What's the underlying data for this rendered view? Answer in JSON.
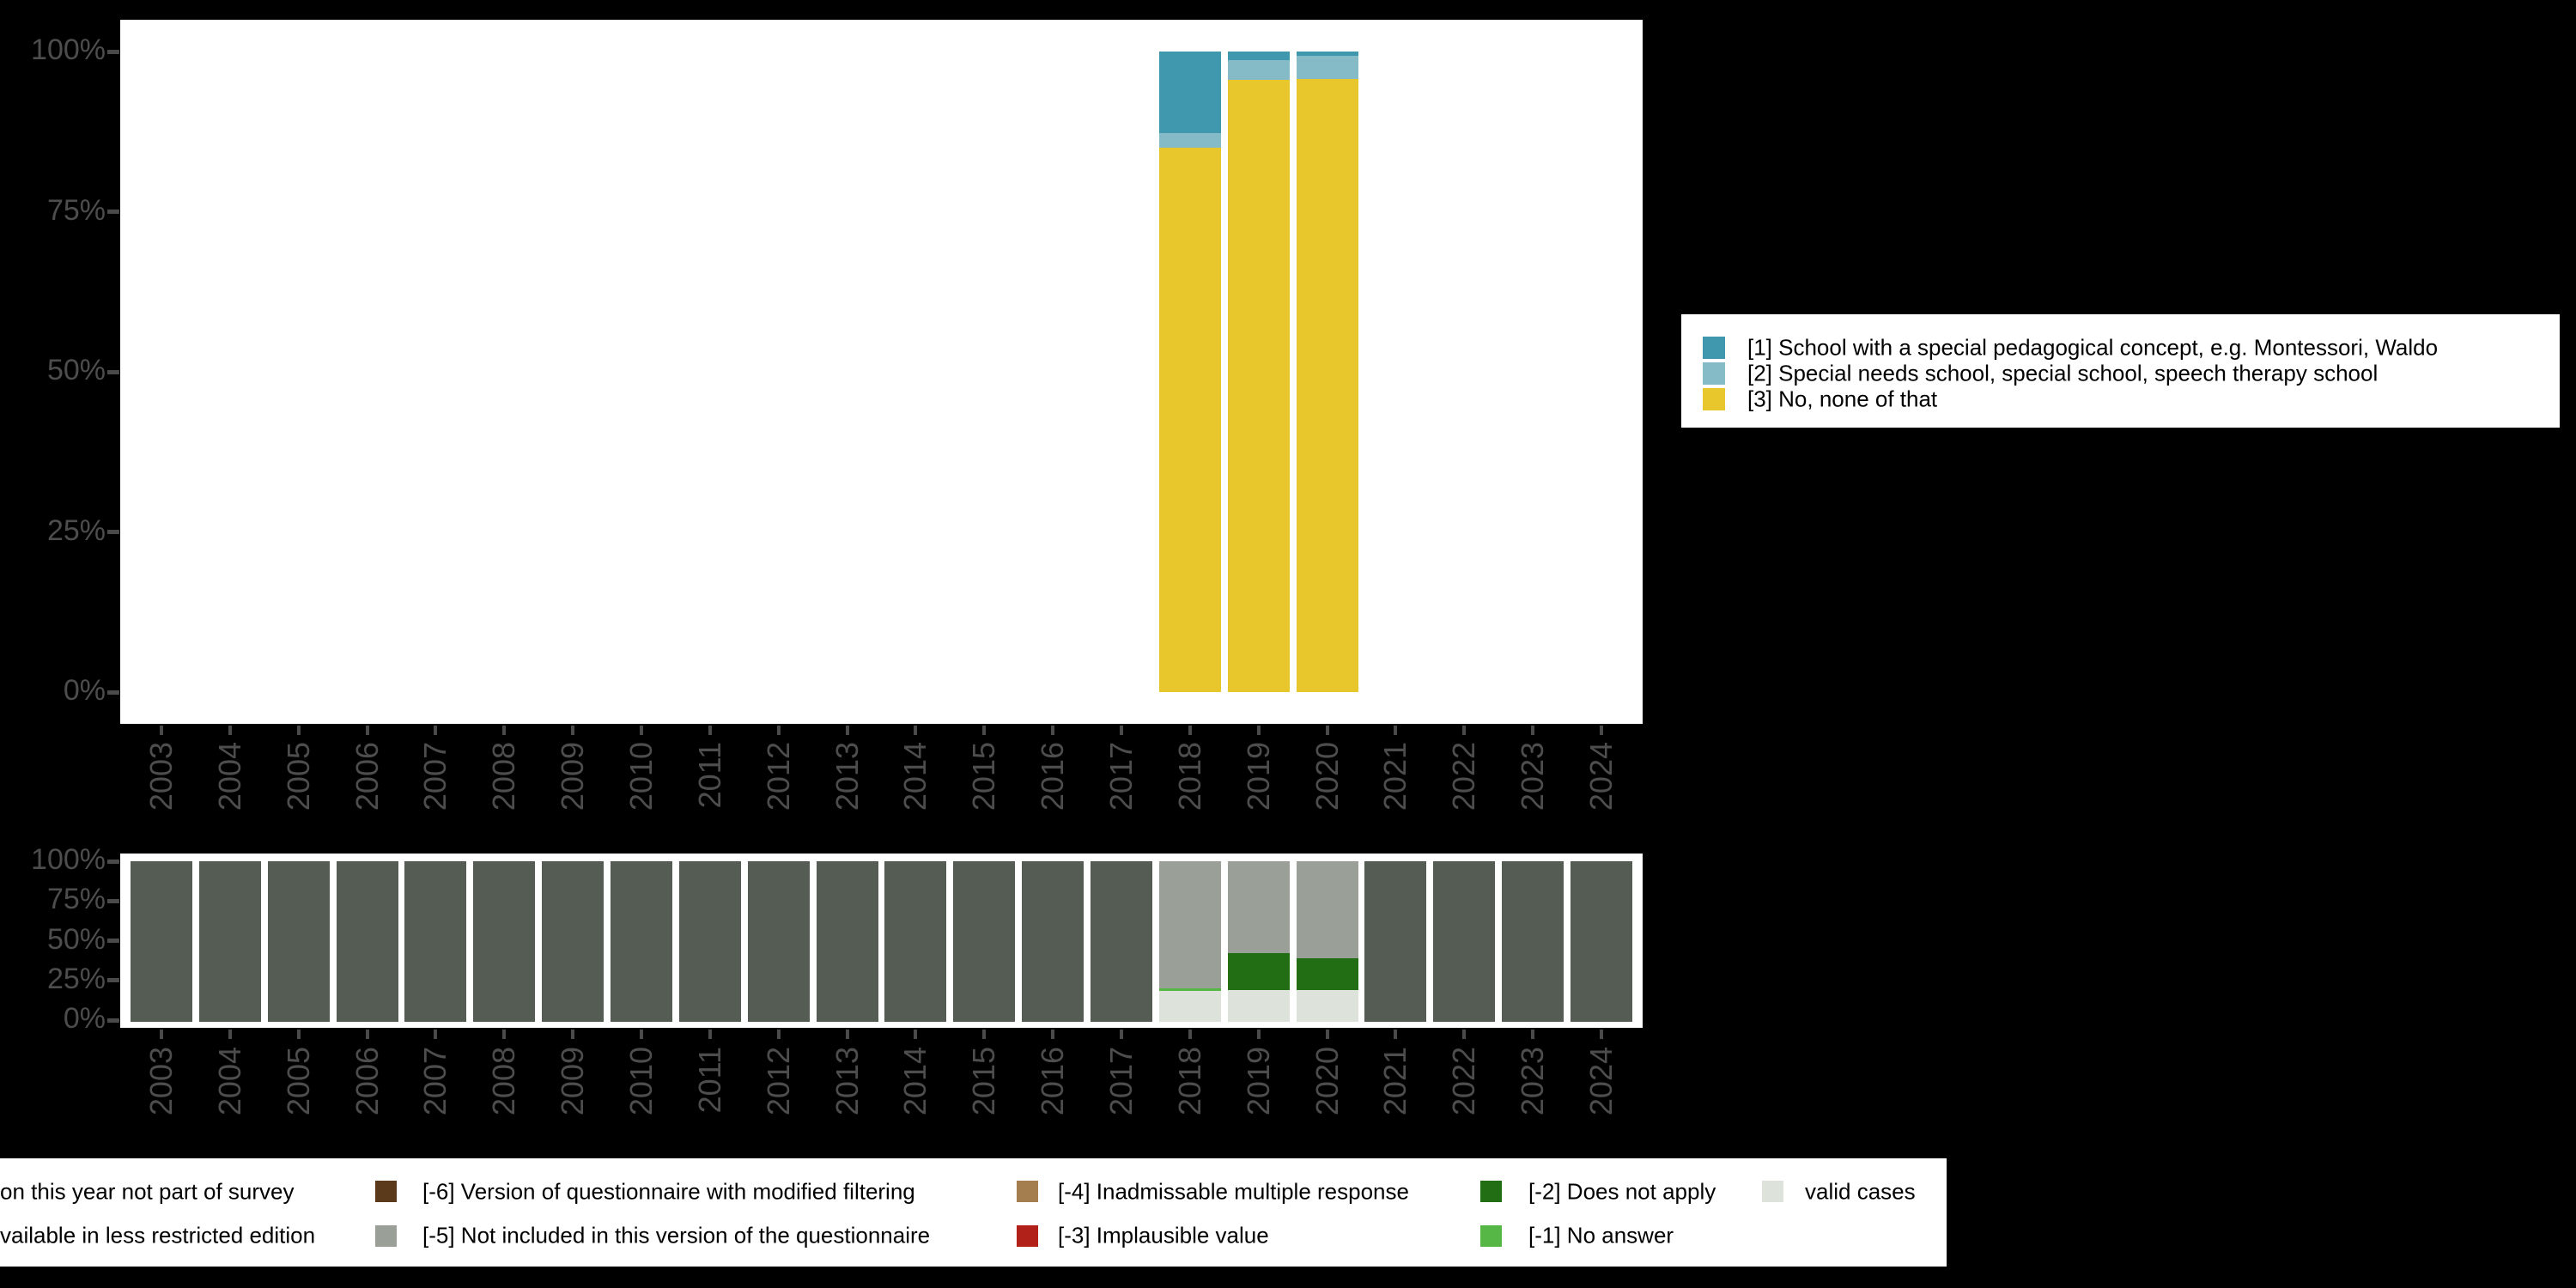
{
  "palette": {
    "page_bg": "#000000",
    "panel_bg": "#ffffff",
    "axis_text": "#4d4d4d",
    "tick": "#4a4a4a",
    "legend_bg": "#ffffff",
    "legend_text": "#000000",
    "cat1": "#3f98ad",
    "cat2": "#85bac7",
    "cat3": "#e8c72d",
    "not_part_of_survey": "#555c54",
    "m6": "#5a3a1b",
    "m5": "#9aa098",
    "m4": "#a57e4f",
    "m3": "#b2201a",
    "m2": "#226e14",
    "m1": "#56b747",
    "valid": "#dde3da"
  },
  "years": [
    "2003",
    "2004",
    "2005",
    "2006",
    "2007",
    "2008",
    "2009",
    "2010",
    "2011",
    "2012",
    "2013",
    "2014",
    "2015",
    "2016",
    "2017",
    "2018",
    "2019",
    "2020",
    "2021",
    "2022",
    "2023",
    "2024"
  ],
  "chart_data": [
    {
      "type": "bar",
      "subtype": "stacked-100-percent",
      "panel": "categories",
      "title": "",
      "xlabel": "",
      "ylabel": "",
      "categories": [
        "2003",
        "2004",
        "2005",
        "2006",
        "2007",
        "2008",
        "2009",
        "2010",
        "2011",
        "2012",
        "2013",
        "2014",
        "2015",
        "2016",
        "2017",
        "2018",
        "2019",
        "2020",
        "2021",
        "2022",
        "2023",
        "2024"
      ],
      "yticks": [
        "0%",
        "25%",
        "50%",
        "75%",
        "100%"
      ],
      "ylim": [
        0,
        100
      ],
      "grid": false,
      "legend_position": "right",
      "series": [
        {
          "name": "[1] School with a special pedagogical concept, e.g. Montessori, Waldo",
          "color_key": "cat1",
          "values": [
            null,
            null,
            null,
            null,
            null,
            null,
            null,
            null,
            null,
            null,
            null,
            null,
            null,
            null,
            null,
            12.7,
            1.3,
            0.7,
            null,
            null,
            null,
            null
          ]
        },
        {
          "name": "[2] Special needs school, special school, speech therapy school",
          "color_key": "cat2",
          "values": [
            null,
            null,
            null,
            null,
            null,
            null,
            null,
            null,
            null,
            null,
            null,
            null,
            null,
            null,
            null,
            2.3,
            3.1,
            3.6,
            null,
            null,
            null,
            null
          ]
        },
        {
          "name": "[3] No, none of that",
          "color_key": "cat3",
          "values": [
            null,
            null,
            null,
            null,
            null,
            null,
            null,
            null,
            null,
            null,
            null,
            null,
            null,
            null,
            null,
            85.0,
            95.6,
            95.7,
            null,
            null,
            null,
            null
          ]
        }
      ]
    },
    {
      "type": "bar",
      "subtype": "stacked-100-percent",
      "panel": "missing-values",
      "title": "",
      "xlabel": "",
      "ylabel": "",
      "categories": [
        "2003",
        "2004",
        "2005",
        "2006",
        "2007",
        "2008",
        "2009",
        "2010",
        "2011",
        "2012",
        "2013",
        "2014",
        "2015",
        "2016",
        "2017",
        "2018",
        "2019",
        "2020",
        "2021",
        "2022",
        "2023",
        "2024"
      ],
      "yticks": [
        "0%",
        "25%",
        "50%",
        "75%",
        "100%"
      ],
      "ylim": [
        0,
        100
      ],
      "grid": false,
      "legend_position": "bottom",
      "series": [
        {
          "name": "on this year not part of survey",
          "color_key": "not_part_of_survey",
          "values": [
            100,
            100,
            100,
            100,
            100,
            100,
            100,
            100,
            100,
            100,
            100,
            100,
            100,
            100,
            100,
            null,
            null,
            null,
            100,
            100,
            100,
            100
          ]
        },
        {
          "name": "[-5] Not included in this version of the questionnaire",
          "color_key": "m5",
          "values": [
            null,
            null,
            null,
            null,
            null,
            null,
            null,
            null,
            null,
            null,
            null,
            null,
            null,
            null,
            null,
            79.1,
            57.2,
            60.4,
            null,
            null,
            null,
            null
          ]
        },
        {
          "name": "[-2] Does not apply",
          "color_key": "m2",
          "values": [
            null,
            null,
            null,
            null,
            null,
            null,
            null,
            null,
            null,
            null,
            null,
            null,
            null,
            null,
            null,
            null,
            23.0,
            19.8,
            null,
            null,
            null,
            null
          ]
        },
        {
          "name": "[-1] No answer",
          "color_key": "m1",
          "values": [
            null,
            null,
            null,
            null,
            null,
            null,
            null,
            null,
            null,
            null,
            null,
            null,
            null,
            null,
            null,
            1.9,
            null,
            null,
            null,
            null,
            null,
            null
          ]
        },
        {
          "name": "valid cases",
          "color_key": "valid",
          "values": [
            null,
            null,
            null,
            null,
            null,
            null,
            null,
            null,
            null,
            null,
            null,
            null,
            null,
            null,
            null,
            19.0,
            19.8,
            19.8,
            null,
            null,
            null,
            null
          ]
        }
      ]
    }
  ],
  "legend_right": {
    "items": [
      {
        "label": "[1] School with a special pedagogical concept, e.g. Montessori, Waldo",
        "color_key": "cat1"
      },
      {
        "label": "[2] Special needs school, special school, speech therapy school",
        "color_key": "cat2"
      },
      {
        "label": "[3] No, none of that",
        "color_key": "cat3"
      }
    ]
  },
  "legend_bottom": {
    "rows": [
      [
        {
          "text": "on this year not part of survey",
          "text_x": 0,
          "swatch_color_key": null,
          "swatch_x": null
        },
        {
          "text": "[-6] Version of questionnaire with modified filtering",
          "text_x": 492,
          "swatch_color_key": "m6",
          "swatch_x": 437
        },
        {
          "text": "[-4] Inadmissable multiple response",
          "text_x": 1232,
          "swatch_color_key": "m4",
          "swatch_x": 1184
        },
        {
          "text": "[-2] Does not apply",
          "text_x": 1780,
          "swatch_color_key": "m2",
          "swatch_x": 1724
        },
        {
          "text": "valid cases",
          "text_x": 2102,
          "swatch_color_key": "valid",
          "swatch_x": 2052
        }
      ],
      [
        {
          "text": "vailable in less restricted edition",
          "text_x": 0,
          "swatch_color_key": null,
          "swatch_x": null
        },
        {
          "text": "[-5] Not included in this version of the questionnaire",
          "text_x": 492,
          "swatch_color_key": "m5",
          "swatch_x": 437
        },
        {
          "text": "[-3] Implausible value",
          "text_x": 1232,
          "swatch_color_key": "m3",
          "swatch_x": 1184
        },
        {
          "text": "[-1] No answer",
          "text_x": 1780,
          "swatch_color_key": "m1",
          "swatch_x": 1724
        }
      ]
    ]
  }
}
